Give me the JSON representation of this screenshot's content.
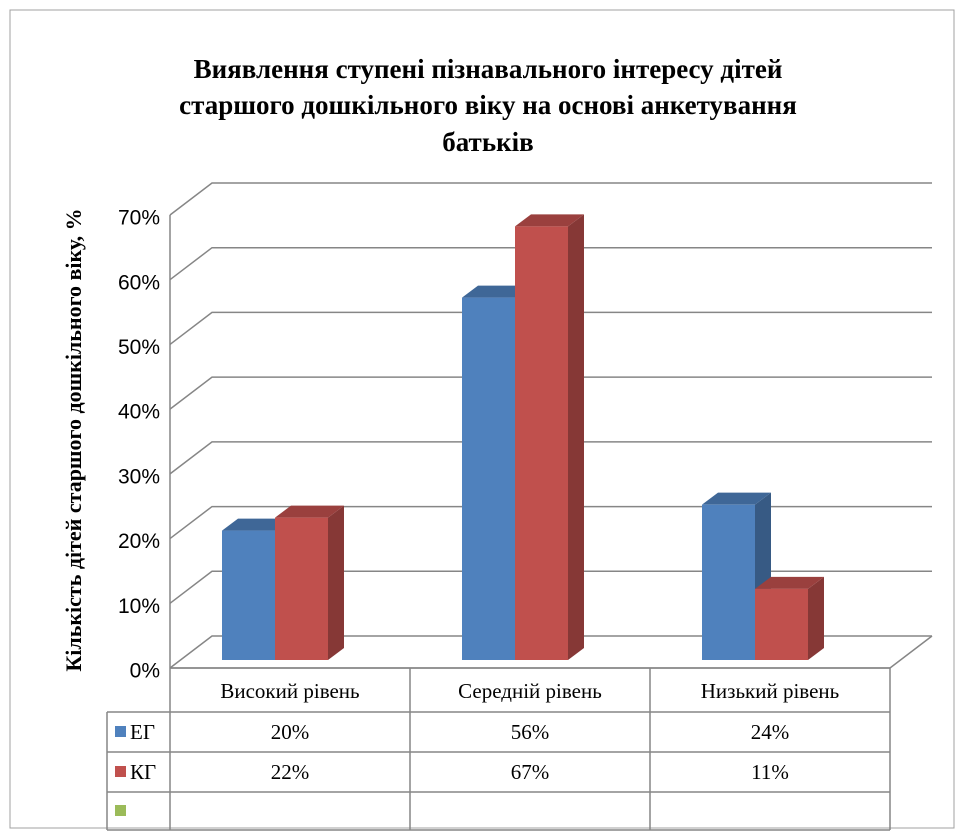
{
  "chart_data": {
    "type": "bar3d",
    "title": [
      "Виявлення ступені пізнавального інтересу дітей",
      "старшого дошкільного віку на основі анкетування",
      "батьків"
    ],
    "y_label": "Кількість дітей старшого дошкільного віку, %",
    "categories": [
      "Високий рівень",
      "Середній рівень",
      "Низький рівень"
    ],
    "series": [
      {
        "name": "ЕГ",
        "color": "#4f81bd",
        "values": [
          20,
          56,
          24
        ],
        "value_labels": [
          "20%",
          "56%",
          "24%"
        ]
      },
      {
        "name": "КГ",
        "color": "#c0504d",
        "values": [
          22,
          67,
          11
        ],
        "value_labels": [
          "22%",
          "67%",
          "11%"
        ]
      },
      {
        "color": "#9bbb59",
        "values": [
          null,
          null,
          null
        ]
      }
    ],
    "ylim": [
      0,
      70
    ],
    "yticks": [
      {
        "value": 0,
        "label": "0%"
      },
      {
        "value": 10,
        "label": "10%"
      },
      {
        "value": 20,
        "label": "20%"
      },
      {
        "value": 30,
        "label": "30%"
      },
      {
        "value": 40,
        "label": "40%"
      },
      {
        "value": 50,
        "label": "50%"
      },
      {
        "value": 60,
        "label": "60%"
      },
      {
        "value": 70,
        "label": "70%"
      }
    ],
    "grid": true,
    "data_table": true
  }
}
